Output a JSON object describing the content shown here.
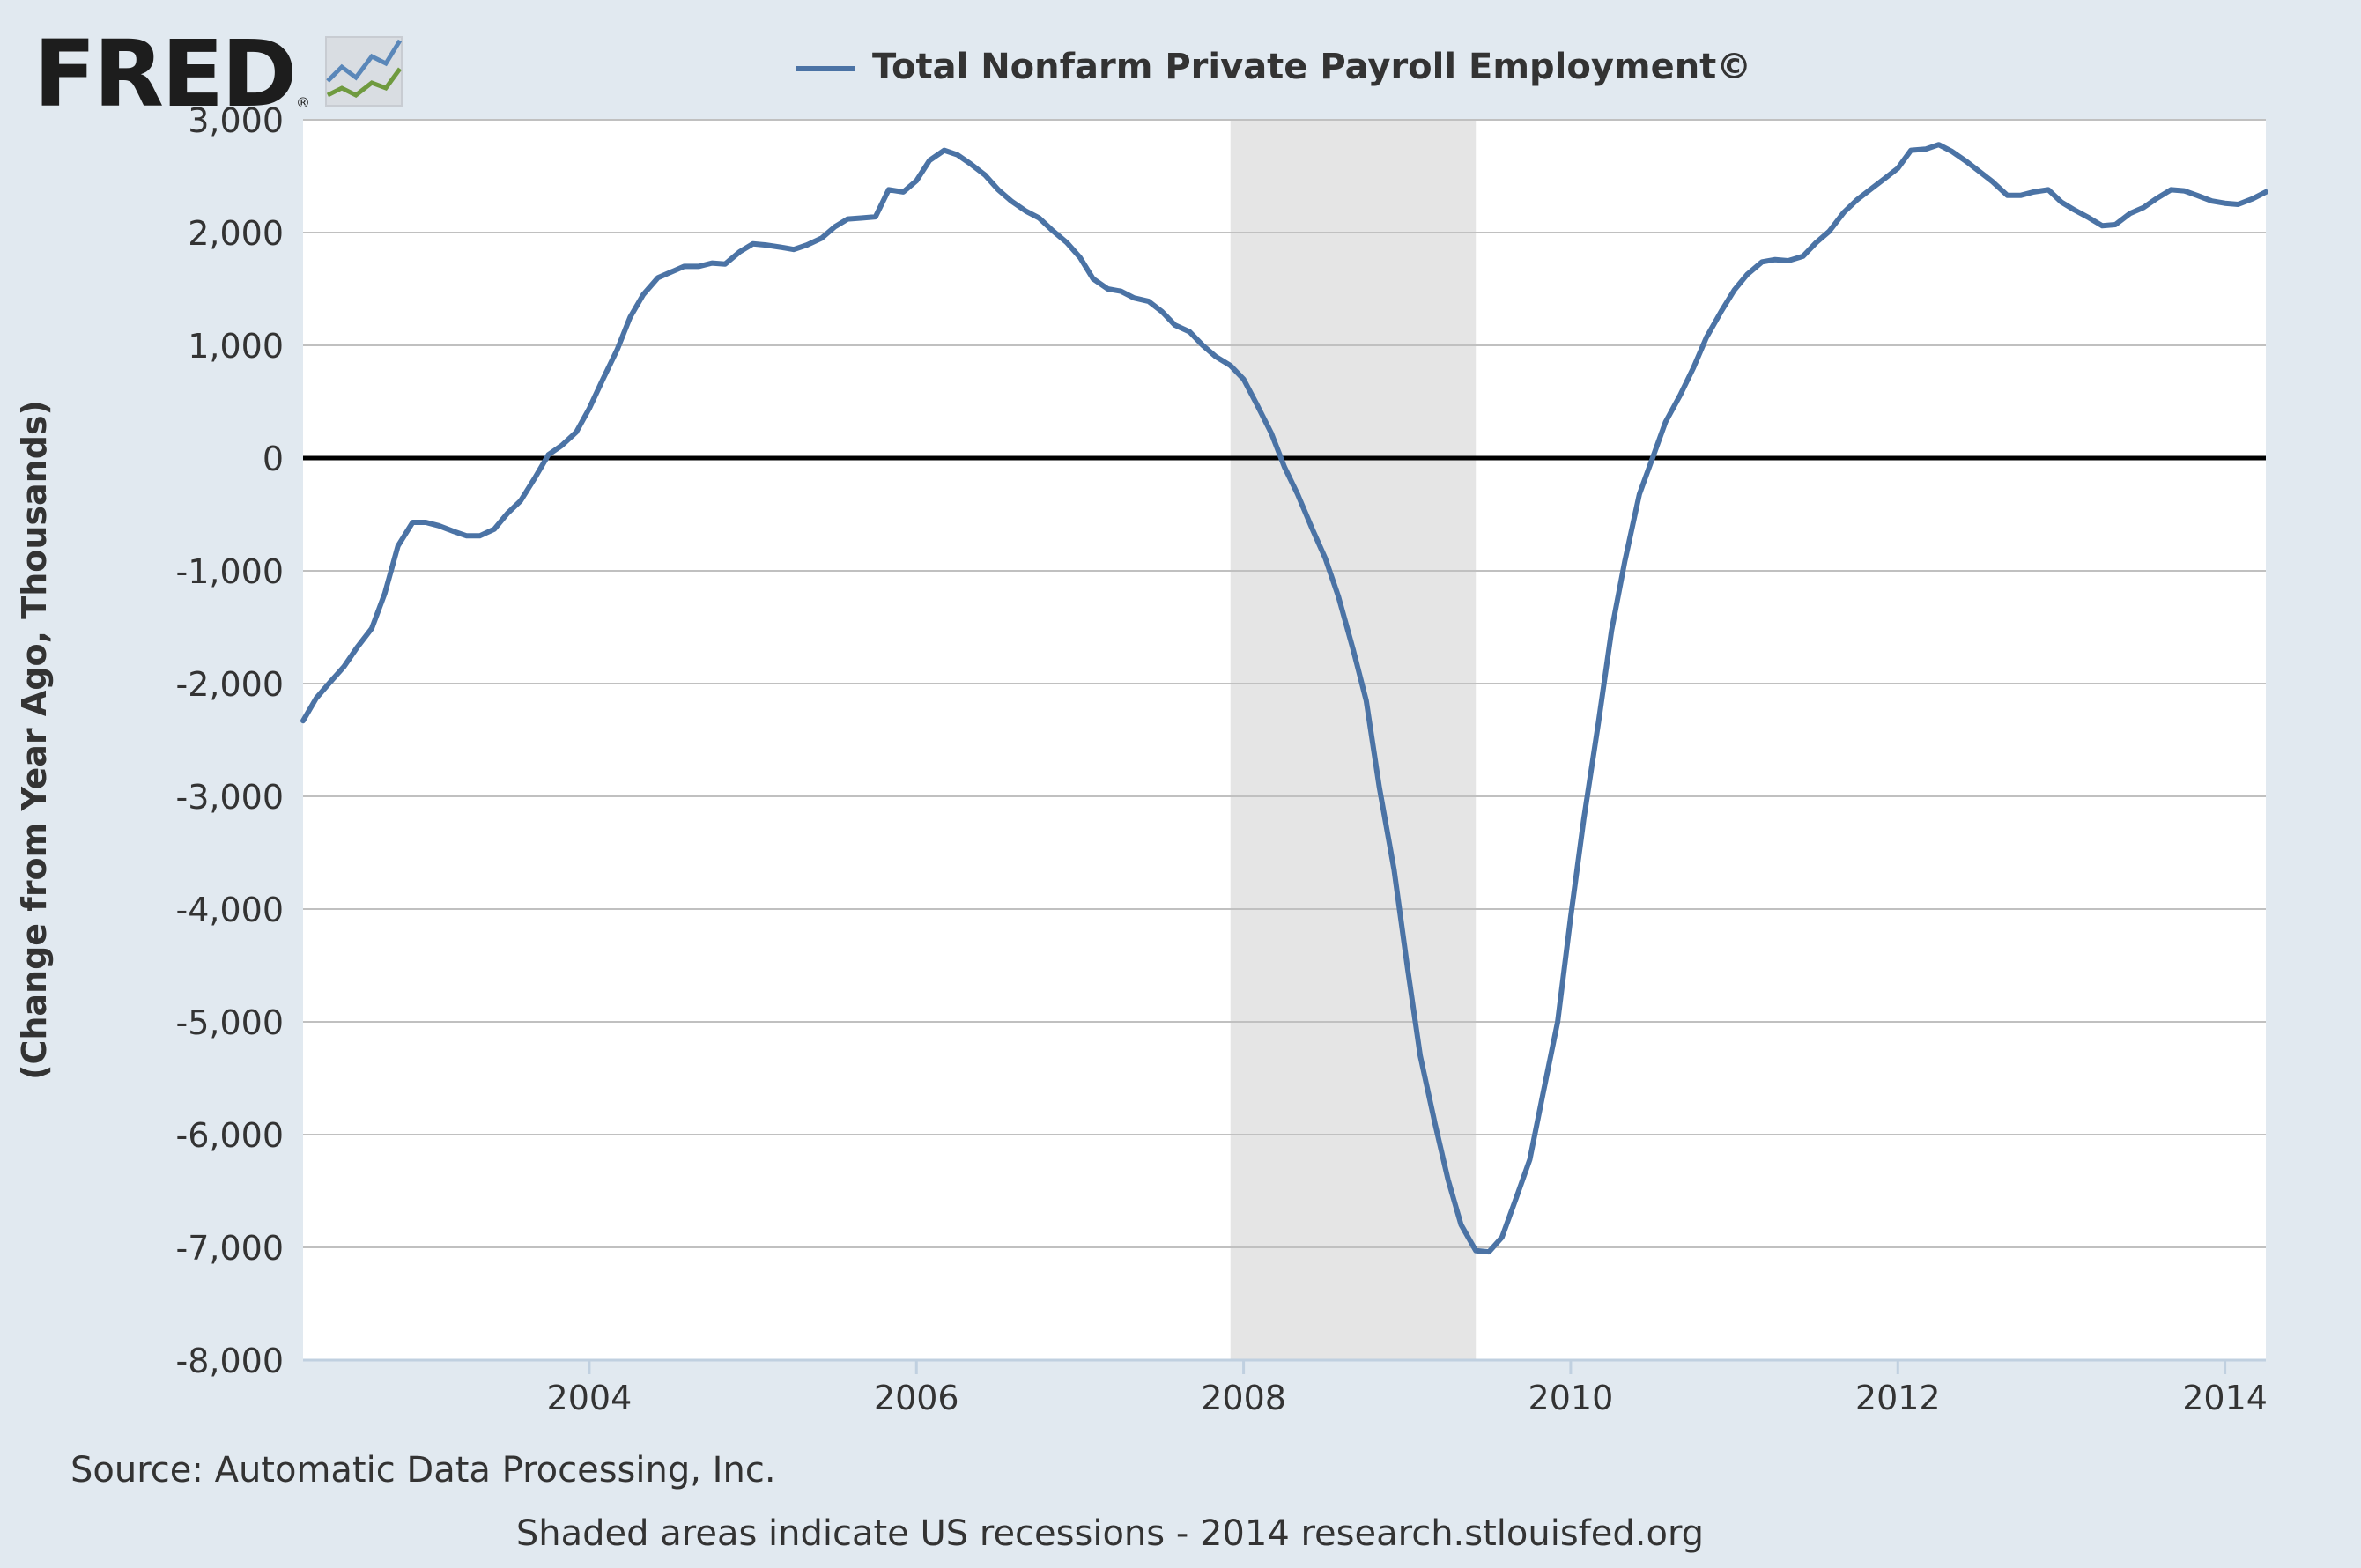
{
  "logo": {
    "text": "FRED",
    "registered": "®"
  },
  "legend": {
    "label": "Total Nonfarm Private Payroll Employment©"
  },
  "source": "Source: Automatic Data Processing, Inc.",
  "footer": "Shaded areas indicate US recessions - 2014 research.stlouisfed.org",
  "colors": {
    "background": "#e1e9f0",
    "plot": "#ffffff",
    "series": "#4b73a5",
    "recession": "#e5e5e5",
    "grid": "#c0c0c0",
    "zero_line": "#000000",
    "text": "#333333"
  },
  "chart_data": {
    "type": "line",
    "title": "",
    "xlabel": "",
    "ylabel": "(Change from Year Ago, Thousands)",
    "xlim": [
      2002.25,
      2014.25
    ],
    "ylim": [
      -8000,
      3000
    ],
    "grid": true,
    "legend_position": "top-center",
    "x_ticks": [
      2004,
      2006,
      2008,
      2010,
      2012,
      2014
    ],
    "x_tick_labels": [
      "2004",
      "2006",
      "2008",
      "2010",
      "2012",
      "2014"
    ],
    "y_ticks": [
      3000,
      2000,
      1000,
      0,
      -1000,
      -2000,
      -3000,
      -4000,
      -5000,
      -6000,
      -7000,
      -8000
    ],
    "y_tick_labels": [
      "3,000",
      "2,000",
      "1,000",
      "0",
      "-1,000",
      "-2,000",
      "-3,000",
      "-4,000",
      "-5,000",
      "-6,000",
      "-7,000",
      "-8,000"
    ],
    "recessions": [
      {
        "start": 2007.92,
        "end": 2009.42
      }
    ],
    "series": [
      {
        "name": "Total Nonfarm Private Payroll Employment©",
        "x": [
          2002.25,
          2002.33,
          2002.42,
          2002.5,
          2002.58,
          2002.67,
          2002.75,
          2002.83,
          2002.92,
          2003.0,
          2003.08,
          2003.17,
          2003.25,
          2003.33,
          2003.42,
          2003.5,
          2003.58,
          2003.67,
          2003.75,
          2003.83,
          2003.92,
          2004.0,
          2004.08,
          2004.17,
          2004.25,
          2004.33,
          2004.42,
          2004.5,
          2004.58,
          2004.67,
          2004.75,
          2004.83,
          2004.92,
          2005.0,
          2005.08,
          2005.17,
          2005.25,
          2005.33,
          2005.42,
          2005.5,
          2005.58,
          2005.67,
          2005.75,
          2005.83,
          2005.92,
          2006.0,
          2006.08,
          2006.17,
          2006.25,
          2006.33,
          2006.42,
          2006.5,
          2006.58,
          2006.67,
          2006.75,
          2006.83,
          2006.92,
          2007.0,
          2007.08,
          2007.17,
          2007.25,
          2007.33,
          2007.42,
          2007.5,
          2007.58,
          2007.67,
          2007.75,
          2007.83,
          2007.92,
          2008.0,
          2008.08,
          2008.17,
          2008.25,
          2008.33,
          2008.42,
          2008.5,
          2008.58,
          2008.67,
          2008.75,
          2008.83,
          2008.92,
          2009.0,
          2009.08,
          2009.17,
          2009.25,
          2009.33,
          2009.42,
          2009.5,
          2009.58,
          2009.67,
          2009.75,
          2009.83,
          2009.92,
          2010.0,
          2010.08,
          2010.17,
          2010.25,
          2010.33,
          2010.42,
          2010.5,
          2010.58,
          2010.67,
          2010.75,
          2010.83,
          2010.92,
          2011.0,
          2011.08,
          2011.17,
          2011.25,
          2011.33,
          2011.42,
          2011.5,
          2011.58,
          2011.67,
          2011.75,
          2011.83,
          2011.92,
          2012.0,
          2012.08,
          2012.17,
          2012.25,
          2012.33,
          2012.42,
          2012.5,
          2012.58,
          2012.67,
          2012.75,
          2012.83,
          2012.92,
          2013.0,
          2013.08,
          2013.17,
          2013.25,
          2013.33,
          2013.42,
          2013.5,
          2013.58,
          2013.67,
          2013.75,
          2013.83,
          2013.92,
          2014.0,
          2014.08,
          2014.17,
          2014.25
        ],
        "values": [
          -2330,
          -2130,
          -1980,
          -1850,
          -1680,
          -1510,
          -1200,
          -780,
          -570,
          -570,
          -600,
          -650,
          -690,
          -690,
          -630,
          -490,
          -380,
          -170,
          30,
          110,
          230,
          440,
          690,
          960,
          1250,
          1450,
          1600,
          1650,
          1700,
          1700,
          1730,
          1720,
          1830,
          1900,
          1890,
          1870,
          1850,
          1890,
          1950,
          2050,
          2120,
          2130,
          2140,
          2380,
          2360,
          2460,
          2640,
          2730,
          2690,
          2610,
          2510,
          2380,
          2280,
          2190,
          2130,
          2020,
          1910,
          1780,
          1590,
          1500,
          1480,
          1420,
          1390,
          1300,
          1180,
          1120,
          1000,
          900,
          820,
          700,
          480,
          220,
          -80,
          -320,
          -630,
          -890,
          -1230,
          -1700,
          -2150,
          -2920,
          -3650,
          -4500,
          -5300,
          -5900,
          -6400,
          -6800,
          -7030,
          -7040,
          -6910,
          -6550,
          -6220,
          -5640,
          -5000,
          -4070,
          -3200,
          -2340,
          -1530,
          -920,
          -320,
          0,
          320,
          560,
          800,
          1070,
          1300,
          1490,
          1630,
          1740,
          1760,
          1750,
          1790,
          1910,
          2010,
          2180,
          2290,
          2380,
          2480,
          2570,
          2730,
          2740,
          2780,
          2720,
          2630,
          2540,
          2450,
          2330,
          2330,
          2360,
          2380,
          2270,
          2200,
          2130,
          2060,
          2070,
          2170,
          2220,
          2300,
          2380,
          2370,
          2330,
          2280,
          2260,
          2250,
          2300,
          2360
        ]
      }
    ]
  }
}
